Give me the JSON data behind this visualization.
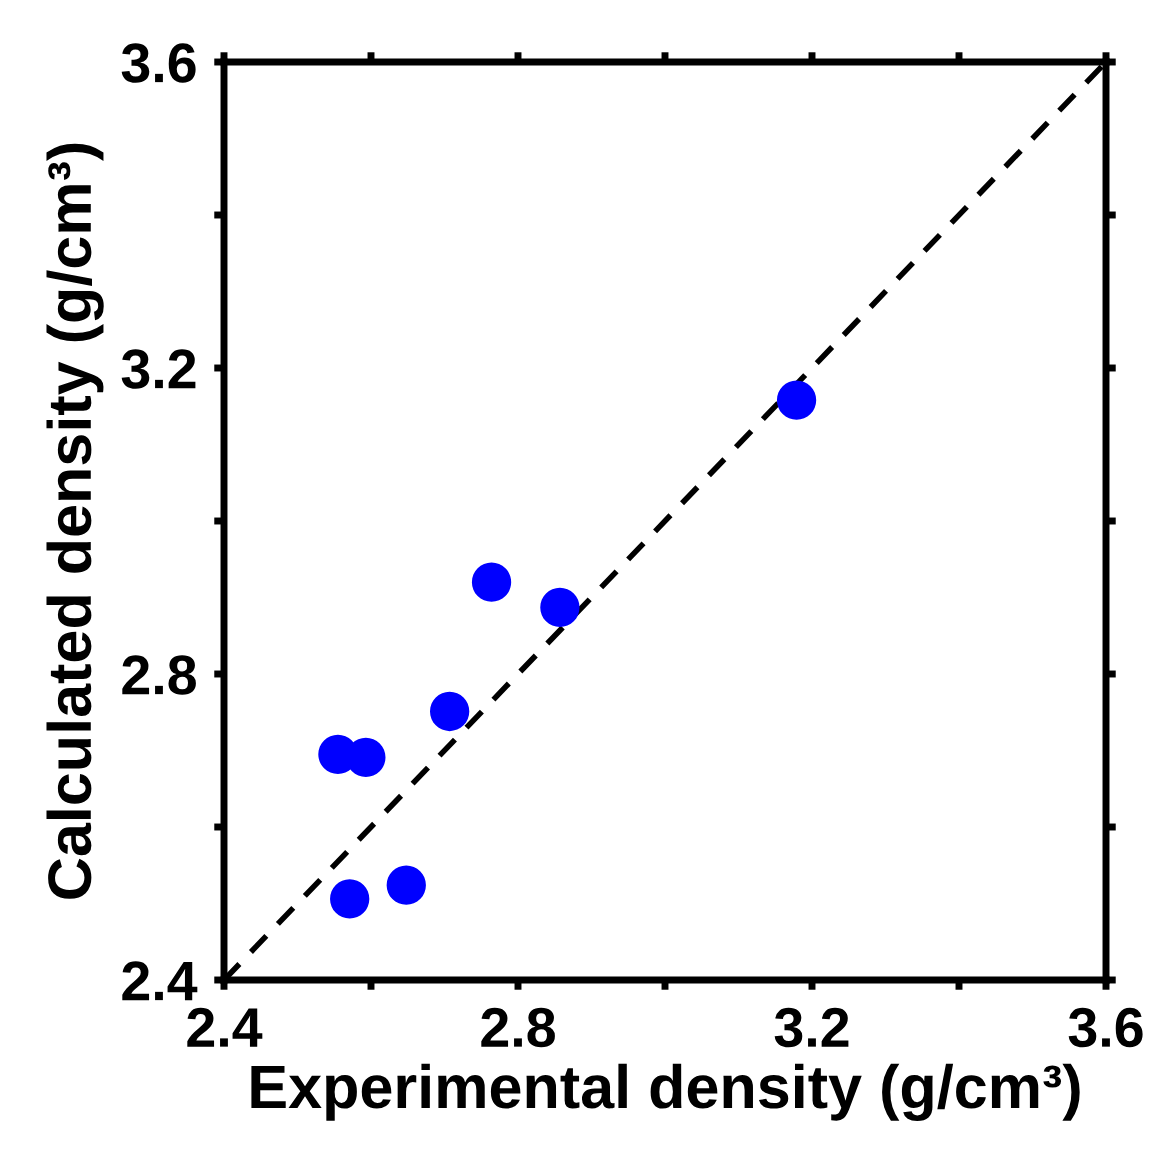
{
  "chart_data": {
    "type": "scatter",
    "xlabel": "Experimental density (g/cm³)",
    "ylabel": "Calculated density (g/cm³)",
    "xlim": [
      2.4,
      3.6
    ],
    "ylim": [
      2.4,
      3.6
    ],
    "xticks": [
      2.4,
      {
        "value": 2.6,
        "label": null
      },
      2.8,
      {
        "value": 3.0,
        "label": null
      },
      3.2,
      {
        "value": 3.4,
        "label": null
      },
      3.6
    ],
    "yticks": [
      2.4,
      {
        "value": 2.6,
        "label": null
      },
      2.8,
      {
        "value": 3.0,
        "label": null
      },
      3.2,
      {
        "value": 3.4,
        "label": null
      },
      3.6
    ],
    "grid": false,
    "legend": false,
    "series": [
      {
        "color": "#0000ff",
        "marker": "circle",
        "x": [
          2.555,
          2.593,
          2.571,
          2.648,
          2.707,
          2.764,
          2.857,
          3.179
        ],
        "values": [
          2.695,
          2.691,
          2.506,
          2.524,
          2.751,
          2.92,
          2.887,
          3.158
        ]
      },
      {
        "type": "line",
        "color": "#000000",
        "line_style": "dashed",
        "marker": "none",
        "x": [
          2.4,
          3.6
        ],
        "values": [
          2.4,
          3.6
        ]
      }
    ]
  }
}
